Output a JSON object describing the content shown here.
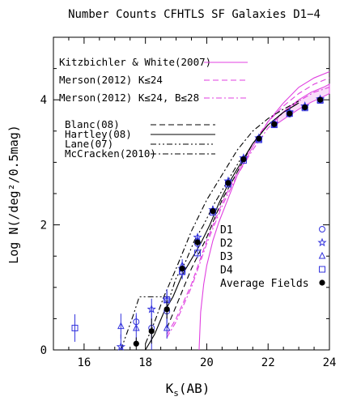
{
  "chart_data": {
    "type": "line",
    "title": "Number Counts CFHTLS SF Galaxies D1−4",
    "xlabel_main": "K",
    "xlabel_sub": "s",
    "xlabel_tail": "(AB)",
    "ylabel": "Log N(/deg²/0.5mag)",
    "xlim": [
      15.0,
      24.0
    ],
    "ylim": [
      0.0,
      5.0
    ],
    "xticks": [
      16,
      18,
      20,
      22,
      24
    ],
    "yticks": [
      0,
      2,
      4
    ],
    "grid": false,
    "colors": {
      "model": "#e040e0",
      "data": "#3333dd",
      "black": "#000000"
    },
    "legend_models": [
      {
        "label": "Kitzbichler & White(2007)",
        "style": "solid",
        "color": "#e040e0"
      },
      {
        "label": "Merson(2012) K≤24",
        "style": "dashed",
        "color": "#e040e0"
      },
      {
        "label": "Merson(2012) K≤24, B≤28",
        "style": "dashdot",
        "color": "#e040e0"
      }
    ],
    "legend_literature": [
      {
        "label": "Blanc(08)",
        "style": "dashed"
      },
      {
        "label": "Hartley(08)",
        "style": "solid"
      },
      {
        "label": "Lane(07)",
        "style": "dashdotdot"
      },
      {
        "label": "McCracken(2010)",
        "style": "dashdot"
      }
    ],
    "legend_fields": [
      {
        "label": "D1",
        "marker": "circle"
      },
      {
        "label": "D2",
        "marker": "star"
      },
      {
        "label": "D3",
        "marker": "triangle"
      },
      {
        "label": "D4",
        "marker": "square"
      },
      {
        "label": "Average Fields",
        "marker": "dot"
      }
    ],
    "series": [
      {
        "name": "Kitzbichler & White(2007)",
        "kind": "line",
        "style": "solid",
        "color": "#e040e0",
        "x": [
          19.75,
          19.8,
          19.9,
          20.0,
          20.2,
          20.4,
          20.6,
          20.8,
          21.0,
          21.5,
          22.0,
          22.5,
          23.0,
          23.5,
          24.0
        ],
        "y": [
          0.0,
          0.6,
          1.05,
          1.35,
          1.75,
          2.05,
          2.3,
          2.55,
          2.8,
          3.25,
          3.65,
          3.95,
          4.2,
          4.35,
          4.45
        ]
      },
      {
        "name": "Merson(2012) K≤24",
        "kind": "line",
        "style": "dashed",
        "color": "#e040e0",
        "x": [
          18.7,
          19.0,
          19.5,
          20.0,
          20.5,
          21.0,
          21.5,
          22.0,
          22.5,
          23.0,
          23.5,
          24.0
        ],
        "y": [
          0.25,
          0.5,
          1.05,
          1.75,
          2.35,
          2.85,
          3.3,
          3.65,
          3.9,
          4.1,
          4.25,
          4.35
        ]
      },
      {
        "name": "Merson(2012) K≤24, B≤28",
        "kind": "line",
        "style": "dashdot",
        "color": "#e040e0",
        "x": [
          18.7,
          19.0,
          19.5,
          20.0,
          20.5,
          21.0,
          21.5,
          22.0,
          22.5,
          23.0,
          23.5,
          24.0
        ],
        "y": [
          0.2,
          0.45,
          1.0,
          1.7,
          2.3,
          2.8,
          3.2,
          3.55,
          3.8,
          3.98,
          4.12,
          4.2
        ]
      },
      {
        "name": "Merson(2012) K≤24, B≤28 band",
        "kind": "band",
        "color": "#e040e0",
        "x": [
          22.3,
          22.6,
          23.0,
          23.4,
          23.8,
          24.0
        ],
        "y_low": [
          3.62,
          3.72,
          3.85,
          3.96,
          4.05,
          4.1
        ],
        "y_high": [
          3.72,
          3.85,
          4.0,
          4.12,
          4.2,
          4.25
        ]
      },
      {
        "name": "Blanc(08)",
        "kind": "line",
        "style": "dashed",
        "color": "#000000",
        "x": [
          18.7,
          19.0,
          19.5,
          20.0,
          20.5,
          21.0,
          21.5,
          22.0,
          22.5,
          23.0
        ],
        "y": [
          0.35,
          0.7,
          1.3,
          1.8,
          2.4,
          2.85,
          3.3,
          3.6,
          3.8,
          3.95
        ]
      },
      {
        "name": "Hartley(08)",
        "kind": "line",
        "style": "solid",
        "color": "#000000",
        "x": [
          18.0,
          18.3,
          18.6,
          18.9,
          19.2,
          19.5,
          19.8,
          20.1,
          20.4,
          20.7,
          21.0,
          21.5,
          22.0,
          22.5,
          23.0
        ],
        "y": [
          0.0,
          0.25,
          0.6,
          0.85,
          1.2,
          1.45,
          1.7,
          2.0,
          2.35,
          2.65,
          2.9,
          3.3,
          3.6,
          3.8,
          3.95
        ]
      },
      {
        "name": "Lane(07)",
        "kind": "line",
        "style": "dashdotdot",
        "color": "#000000",
        "x": [
          17.2,
          17.6,
          17.8,
          18.0,
          18.5,
          18.8,
          19.0,
          19.3,
          19.6,
          19.9,
          20.2,
          20.5,
          20.8,
          21.1
        ],
        "y": [
          0.0,
          0.55,
          0.85,
          0.85,
          0.85,
          0.85,
          1.15,
          1.4,
          1.75,
          2.0,
          2.3,
          2.55,
          2.8,
          3.05
        ]
      },
      {
        "name": "McCracken(2010)",
        "kind": "line",
        "style": "dashdot",
        "color": "#000000",
        "x": [
          18.0,
          18.3,
          18.6,
          19.0,
          19.5,
          20.0,
          20.5,
          21.0,
          21.5,
          22.0,
          22.5,
          23.0
        ],
        "y": [
          0.1,
          0.45,
          0.85,
          1.3,
          1.9,
          2.4,
          2.8,
          3.2,
          3.5,
          3.7,
          3.85,
          3.98
        ]
      },
      {
        "name": "D1",
        "kind": "points",
        "marker": "circle",
        "x": [
          17.7,
          18.2,
          18.7,
          19.2,
          19.7,
          20.2,
          20.7,
          21.2,
          21.7,
          22.2,
          22.7,
          23.2,
          23.7
        ],
        "y": [
          0.45,
          0.35,
          0.62,
          1.25,
          1.7,
          2.22,
          2.67,
          3.05,
          3.38,
          3.61,
          3.77,
          3.88,
          4.0
        ],
        "err": [
          0.14,
          0.35,
          0.25,
          0.1,
          0.07,
          0.05,
          0.04,
          0.03,
          0.03,
          0.03,
          0.03,
          0.03,
          0.03
        ]
      },
      {
        "name": "D2",
        "kind": "points",
        "marker": "star",
        "x": [
          17.2,
          18.2,
          18.7,
          19.2,
          19.7,
          20.2,
          20.7,
          21.2,
          21.7,
          22.2,
          22.7,
          23.2,
          23.7
        ],
        "y": [
          0.05,
          0.65,
          0.8,
          1.3,
          1.8,
          2.24,
          2.7,
          3.07,
          3.39,
          3.62,
          3.8,
          3.9,
          4.01
        ],
        "err": [
          0.2,
          0.17,
          0.14,
          0.09,
          0.06,
          0.05,
          0.04,
          0.03,
          0.03,
          0.03,
          0.03,
          0.03,
          0.03
        ]
      },
      {
        "name": "D3",
        "kind": "points",
        "marker": "triangle",
        "x": [
          17.2,
          17.7,
          18.7,
          19.2,
          19.7,
          20.2,
          20.7,
          21.2,
          21.7,
          22.2,
          22.7,
          23.2,
          23.7
        ],
        "y": [
          0.38,
          0.35,
          0.35,
          1.35,
          1.75,
          2.23,
          2.68,
          3.06,
          3.37,
          3.6,
          3.78,
          3.88,
          4.0
        ],
        "err": [
          0.2,
          0.2,
          0.17,
          0.1,
          0.07,
          0.05,
          0.04,
          0.03,
          0.03,
          0.03,
          0.03,
          0.03,
          0.03
        ]
      },
      {
        "name": "D4",
        "kind": "points",
        "marker": "square",
        "x": [
          15.7,
          18.7,
          19.2,
          19.7,
          20.2,
          20.7,
          21.2,
          21.7,
          22.2,
          22.7,
          23.2,
          23.7
        ],
        "y": [
          0.35,
          0.8,
          1.25,
          1.55,
          2.2,
          2.65,
          3.03,
          3.36,
          3.6,
          3.78,
          3.87,
          3.99
        ],
        "err": [
          0.22,
          0.17,
          0.12,
          0.08,
          0.05,
          0.04,
          0.03,
          0.03,
          0.03,
          0.03,
          0.03,
          0.03
        ]
      },
      {
        "name": "Average Fields",
        "kind": "points",
        "marker": "dot",
        "x": [
          17.7,
          18.2,
          18.7,
          19.2,
          19.7,
          20.2,
          20.7,
          21.2,
          21.7,
          22.2,
          22.7,
          23.2,
          23.7
        ],
        "y": [
          0.1,
          0.3,
          0.65,
          1.3,
          1.72,
          2.22,
          2.67,
          3.05,
          3.38,
          3.61,
          3.78,
          3.88,
          4.0
        ],
        "err": [
          0.1,
          0.2,
          0.15,
          0.05,
          0.05,
          0.04,
          0.03,
          0.03,
          0.03,
          0.03,
          0.03,
          0.03,
          0.03
        ]
      }
    ]
  }
}
